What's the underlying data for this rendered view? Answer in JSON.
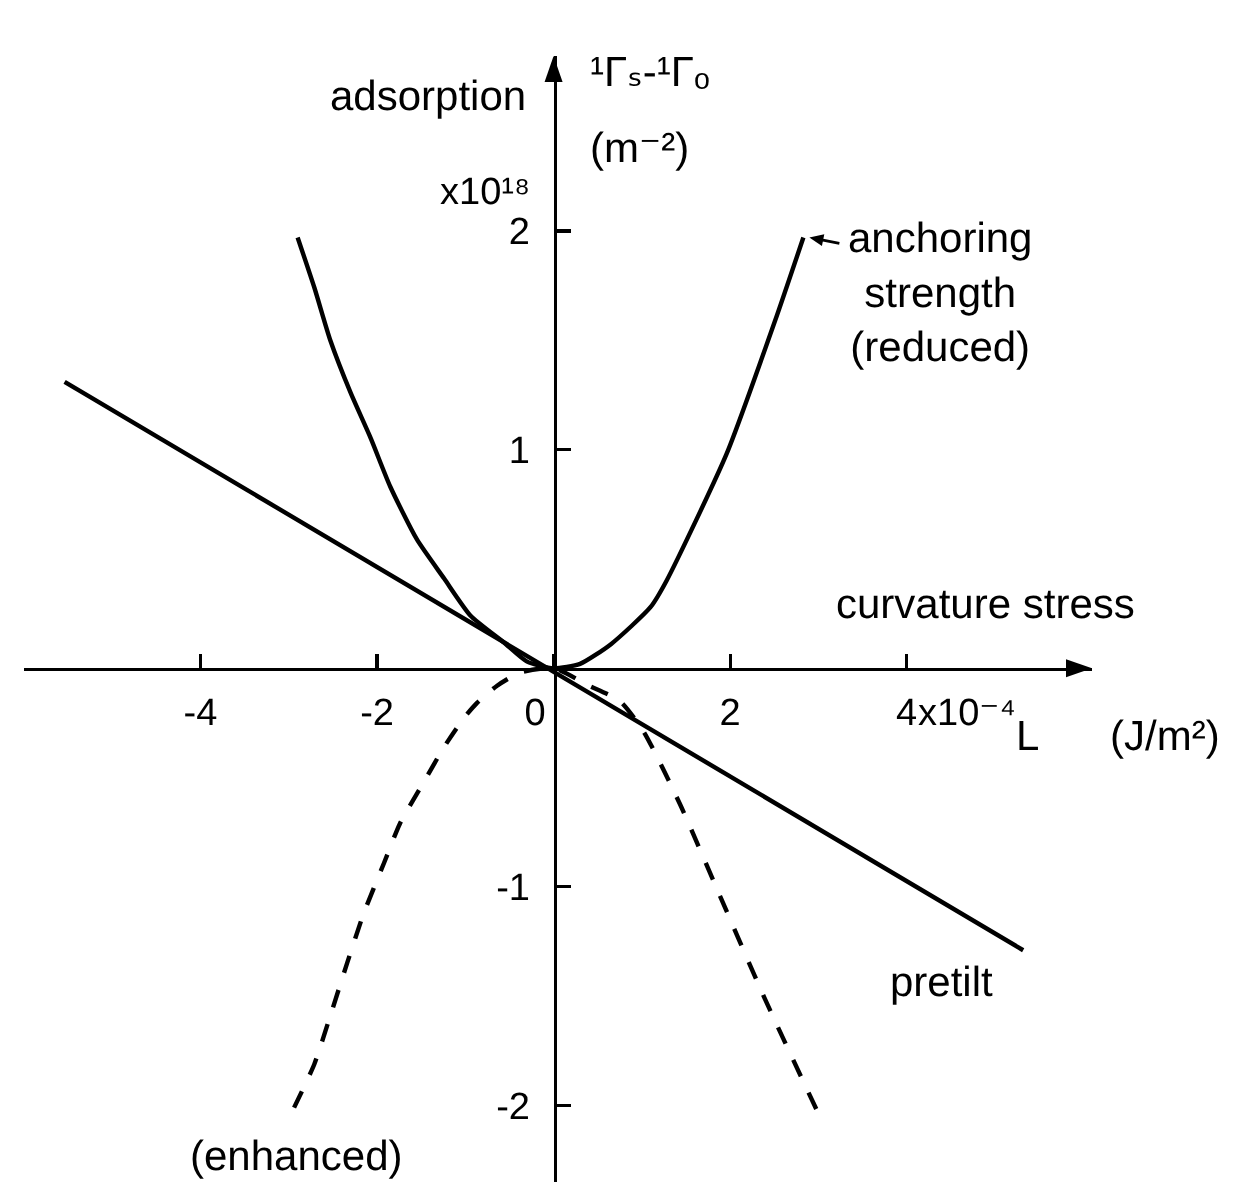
{
  "chart_data": {
    "type": "line",
    "xlabel": "curvature stress",
    "ylabel": "adsorption",
    "annotations": [
      "¹Γₛ-¹Γₒ",
      "(m⁻²)",
      "L",
      "(J/m²)",
      "x10¹⁸",
      "x10⁻⁴"
    ],
    "xlim": [
      -6,
      6.1
    ],
    "ylim": [
      -2.35,
      2.8
    ],
    "xticks": [
      -4,
      -2,
      0,
      2,
      4
    ],
    "yticks": [
      -2,
      -1,
      1,
      2
    ],
    "series": [
      {
        "name": "anchoring strength (reduced)",
        "color": "#000000",
        "line_style": "solid",
        "x": [
          -2.9,
          -2.71,
          -2.53,
          -2.3,
          -2.07,
          -1.85,
          -1.55,
          -1.24,
          -0.94,
          -0.57,
          -0.3,
          0,
          0.3,
          0.65,
          1.1,
          1.28,
          1.96,
          2.51,
          2.83
        ],
        "values": [
          1.97,
          1.74,
          1.5,
          1.26,
          1.05,
          0.83,
          0.59,
          0.41,
          0.24,
          0.12,
          0.03,
          0,
          0.02,
          0.11,
          0.28,
          0.4,
          0.98,
          1.59,
          1.97
        ]
      },
      {
        "name": "(enhanced)",
        "color": "#000000",
        "line_style": "dashed",
        "x": [
          -2.94,
          -2.71,
          -2.53,
          -2.34,
          -2.15,
          -1.92,
          -1.74,
          -1.47,
          -1.24,
          -1.02,
          -0.87,
          -0.64,
          -0.38,
          0,
          0.4,
          0.75,
          1.02,
          1.43,
          1.83,
          2.38,
          2.98
        ],
        "values": [
          -2.01,
          -1.81,
          -1.59,
          -1.35,
          -1.12,
          -0.89,
          -0.71,
          -0.52,
          -0.36,
          -0.23,
          -0.16,
          -0.08,
          -0.02,
          0,
          -0.08,
          -0.15,
          -0.29,
          -0.62,
          -0.99,
          -1.5,
          -2.02
        ]
      },
      {
        "name": "pretilt",
        "color": "#000000",
        "line_style": "solid",
        "x": [
          -5.54,
          5.32
        ],
        "values": [
          1.31,
          -1.29
        ]
      }
    ]
  }
}
